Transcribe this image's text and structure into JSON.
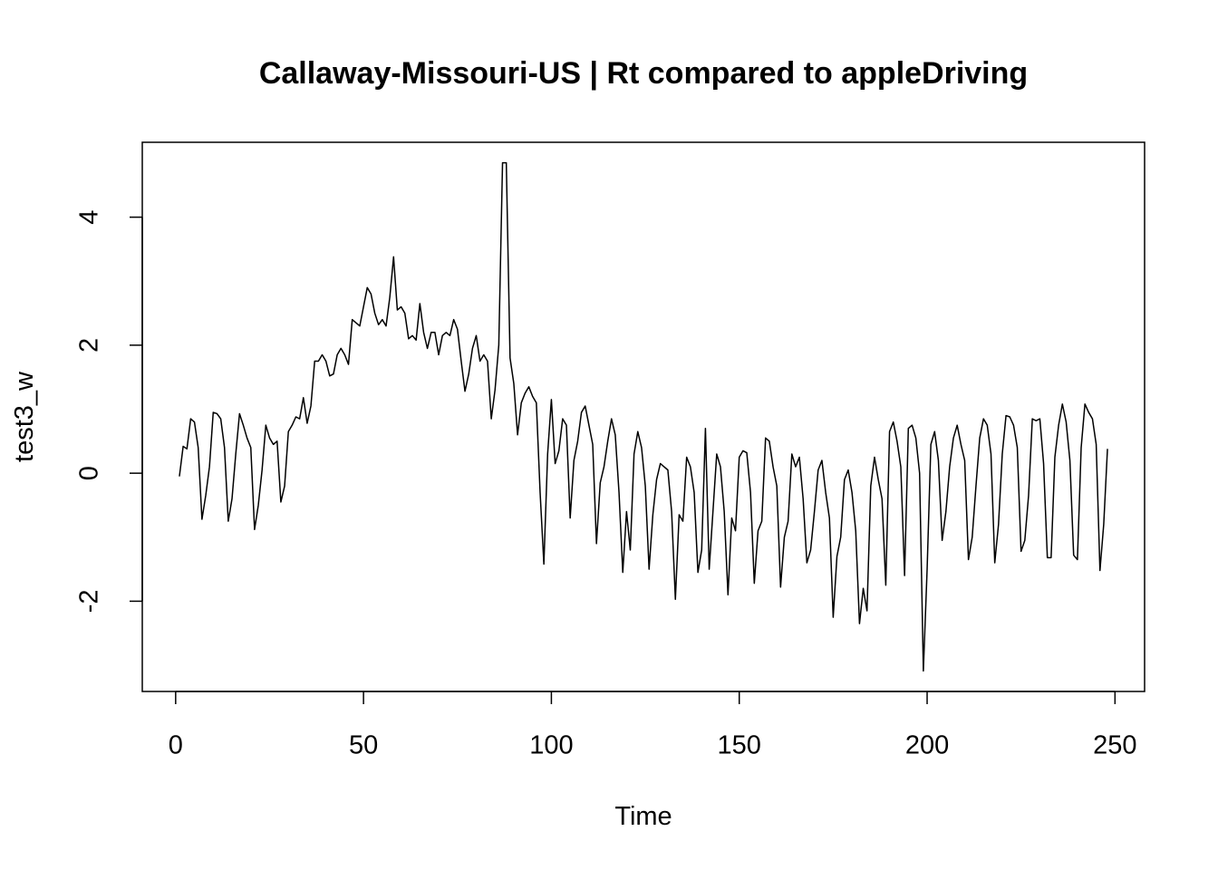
{
  "chart_data": {
    "type": "line",
    "title": "Callaway-Missouri-US | Rt compared to appleDriving",
    "x_label": "Time",
    "y_label": "test3_w",
    "color": "#000000",
    "x": [
      1,
      2,
      3,
      4,
      5,
      6,
      7,
      8,
      9,
      10,
      11,
      12,
      13,
      14,
      15,
      16,
      17,
      18,
      19,
      20,
      21,
      22,
      23,
      24,
      25,
      26,
      27,
      28,
      29,
      30,
      31,
      32,
      33,
      34,
      35,
      36,
      37,
      38,
      39,
      40,
      41,
      42,
      43,
      44,
      45,
      46,
      47,
      48,
      49,
      50,
      51,
      52,
      53,
      54,
      55,
      56,
      57,
      58,
      59,
      60,
      61,
      62,
      63,
      64,
      65,
      66,
      67,
      68,
      69,
      70,
      71,
      72,
      73,
      74,
      75,
      76,
      77,
      78,
      79,
      80,
      81,
      82,
      83,
      84,
      85,
      86,
      87,
      88,
      89,
      90,
      91,
      92,
      93,
      94,
      95,
      96,
      97,
      98,
      99,
      100,
      101,
      102,
      103,
      104,
      105,
      106,
      107,
      108,
      109,
      110,
      111,
      112,
      113,
      114,
      115,
      116,
      117,
      118,
      119,
      120,
      121,
      122,
      123,
      124,
      125,
      126,
      127,
      128,
      129,
      130,
      131,
      132,
      133,
      134,
      135,
      136,
      137,
      138,
      139,
      140,
      141,
      142,
      143,
      144,
      145,
      146,
      147,
      148,
      149,
      150,
      151,
      152,
      153,
      154,
      155,
      156,
      157,
      158,
      159,
      160,
      161,
      162,
      163,
      164,
      165,
      166,
      167,
      168,
      169,
      170,
      171,
      172,
      173,
      174,
      175,
      176,
      177,
      178,
      179,
      180,
      181,
      182,
      183,
      184,
      185,
      186,
      187,
      188,
      189,
      190,
      191,
      192,
      193,
      194,
      195,
      196,
      197,
      198,
      199,
      200,
      201,
      202,
      203,
      204,
      205,
      206,
      207,
      208,
      209,
      210,
      211,
      212,
      213,
      214,
      215,
      216,
      217,
      218,
      219,
      220,
      221,
      222,
      223,
      224,
      225,
      226,
      227,
      228,
      229,
      230,
      231,
      232,
      233,
      234,
      235,
      236,
      237,
      238,
      239,
      240,
      241,
      242,
      243,
      244,
      245,
      246,
      247,
      248
    ],
    "values": [
      -0.05,
      0.42,
      0.38,
      0.85,
      0.8,
      0.4,
      -0.72,
      -0.35,
      0.1,
      0.95,
      0.93,
      0.85,
      0.4,
      -0.75,
      -0.4,
      0.3,
      0.93,
      0.75,
      0.55,
      0.4,
      -0.88,
      -0.5,
      0.05,
      0.75,
      0.55,
      0.45,
      0.5,
      -0.45,
      -0.2,
      0.65,
      0.75,
      0.88,
      0.85,
      1.18,
      0.78,
      1.05,
      1.75,
      1.75,
      1.85,
      1.75,
      1.52,
      1.55,
      1.85,
      1.95,
      1.85,
      1.7,
      2.4,
      2.35,
      2.3,
      2.6,
      2.9,
      2.8,
      2.5,
      2.32,
      2.4,
      2.3,
      2.75,
      3.38,
      2.55,
      2.6,
      2.5,
      2.1,
      2.15,
      2.08,
      2.65,
      2.2,
      1.95,
      2.2,
      2.2,
      1.85,
      2.15,
      2.2,
      2.15,
      2.4,
      2.25,
      1.75,
      1.28,
      1.55,
      1.95,
      2.15,
      1.75,
      1.85,
      1.75,
      0.85,
      1.3,
      2.0,
      4.85,
      4.85,
      1.8,
      1.4,
      0.6,
      1.1,
      1.25,
      1.35,
      1.2,
      1.1,
      -0.3,
      -1.42,
      0.3,
      1.15,
      0.15,
      0.35,
      0.85,
      0.75,
      -0.7,
      0.2,
      0.5,
      0.95,
      1.05,
      0.75,
      0.45,
      -1.1,
      -0.15,
      0.1,
      0.5,
      0.85,
      0.6,
      -0.3,
      -1.55,
      -0.6,
      -1.2,
      0.3,
      0.65,
      0.4,
      -0.2,
      -1.5,
      -0.65,
      -0.1,
      0.15,
      0.1,
      0.05,
      -0.6,
      -1.97,
      -0.65,
      -0.75,
      0.25,
      0.1,
      -0.3,
      -1.55,
      -1.2,
      0.7,
      -1.5,
      -0.6,
      0.3,
      0.1,
      -0.6,
      -1.9,
      -0.7,
      -0.9,
      0.25,
      0.35,
      0.32,
      -0.3,
      -1.72,
      -0.9,
      -0.75,
      0.55,
      0.5,
      0.1,
      -0.2,
      -1.78,
      -1.0,
      -0.75,
      0.3,
      0.1,
      0.25,
      -0.4,
      -1.4,
      -1.2,
      -0.6,
      0.05,
      0.2,
      -0.3,
      -0.7,
      -2.25,
      -1.3,
      -1.0,
      -0.1,
      0.05,
      -0.3,
      -0.9,
      -2.35,
      -1.8,
      -2.15,
      -0.2,
      0.25,
      -0.1,
      -0.4,
      -1.75,
      0.65,
      0.8,
      0.5,
      0.1,
      -1.6,
      0.7,
      0.75,
      0.55,
      0.0,
      -3.09,
      -1.5,
      0.45,
      0.65,
      0.2,
      -1.05,
      -0.6,
      0.1,
      0.55,
      0.75,
      0.45,
      0.2,
      -1.35,
      -1.0,
      -0.2,
      0.55,
      0.85,
      0.75,
      0.3,
      -1.4,
      -0.8,
      0.3,
      0.9,
      0.88,
      0.75,
      0.4,
      -1.22,
      -1.05,
      -0.35,
      0.85,
      0.82,
      0.85,
      0.15,
      -1.32,
      -1.32,
      0.25,
      0.75,
      1.08,
      0.8,
      0.2,
      -1.28,
      -1.35,
      0.4,
      1.08,
      0.95,
      0.85,
      0.45,
      -1.52,
      -0.8,
      0.38
    ],
    "xlim": [
      -8.88,
      257.88
    ],
    "ylim": [
      -3.41,
      5.17
    ],
    "xticks": [
      0,
      50,
      100,
      150,
      200,
      250
    ],
    "yticks": [
      -2,
      0,
      2,
      4
    ]
  }
}
